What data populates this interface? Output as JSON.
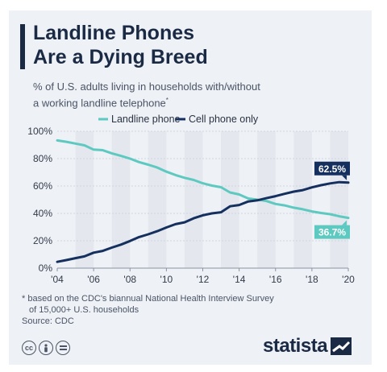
{
  "title_lines": [
    "Landline Phones",
    "Are a Dying Breed"
  ],
  "subtitle_lines": [
    "% of U.S. adults living in households with/without",
    "a working landline telephone"
  ],
  "subtitle_mark": "*",
  "footnote_lines": [
    "* based on the CDC's biannual National Health Interview Survey",
    "of 15,000+ U.S. households"
  ],
  "source": "Source: CDC",
  "brand": "statista",
  "license_icons": [
    "cc-icon",
    "person-icon",
    "equals-icon"
  ],
  "chart_data": {
    "type": "line",
    "x": [
      2004.0,
      2004.5,
      2005.0,
      2005.5,
      2006.0,
      2006.5,
      2007.0,
      2007.5,
      2008.0,
      2008.5,
      2009.0,
      2009.5,
      2010.0,
      2010.5,
      2011.0,
      2011.5,
      2012.0,
      2012.5,
      2013.0,
      2013.5,
      2014.0,
      2014.5,
      2015.0,
      2015.5,
      2016.0,
      2016.5,
      2017.0,
      2017.5,
      2018.0,
      2018.5,
      2019.0,
      2019.5,
      2020.0
    ],
    "series": [
      {
        "name": "Landline phone",
        "color": "#5ec9c0",
        "values": [
          93.3,
          92.3,
          91.0,
          89.7,
          86.6,
          86.2,
          83.9,
          82.0,
          80.0,
          77.5,
          75.6,
          73.5,
          70.5,
          68.0,
          66.0,
          64.4,
          62.0,
          60.3,
          59.1,
          55.3,
          53.8,
          50.9,
          50.0,
          49.0,
          46.9,
          45.8,
          44.2,
          43.0,
          41.4,
          40.3,
          39.4,
          37.9,
          36.7
        ]
      },
      {
        "name": "Cell phone only",
        "color": "#15305e",
        "values": [
          4.6,
          5.9,
          7.3,
          8.6,
          11.3,
          12.6,
          15.0,
          17.2,
          19.8,
          22.7,
          24.7,
          27.0,
          29.7,
          32.1,
          33.5,
          36.4,
          38.6,
          40.0,
          40.8,
          45.2,
          46.1,
          48.7,
          49.5,
          51.1,
          52.6,
          54.3,
          55.9,
          57.0,
          59.0,
          60.6,
          61.9,
          62.8,
          62.5
        ]
      }
    ],
    "xticks": [
      "'04",
      "'06",
      "'08",
      "'10",
      "'12",
      "'14",
      "'16",
      "'18",
      "'20"
    ],
    "xtick_values": [
      2004,
      2006,
      2008,
      2010,
      2012,
      2014,
      2016,
      2018,
      2020
    ],
    "yticks": [
      "0%",
      "20%",
      "40%",
      "60%",
      "80%",
      "100%"
    ],
    "ytick_values": [
      0,
      20,
      40,
      60,
      80,
      100
    ],
    "ylim": [
      0,
      100
    ],
    "xlim": [
      2004,
      2020
    ],
    "grid": true,
    "legend_position": "top",
    "end_labels": [
      {
        "series": "Cell phone only",
        "text": "62.5%",
        "color": "#15305e"
      },
      {
        "series": "Landline phone",
        "text": "36.7%",
        "color": "#5ec9c0"
      }
    ]
  }
}
